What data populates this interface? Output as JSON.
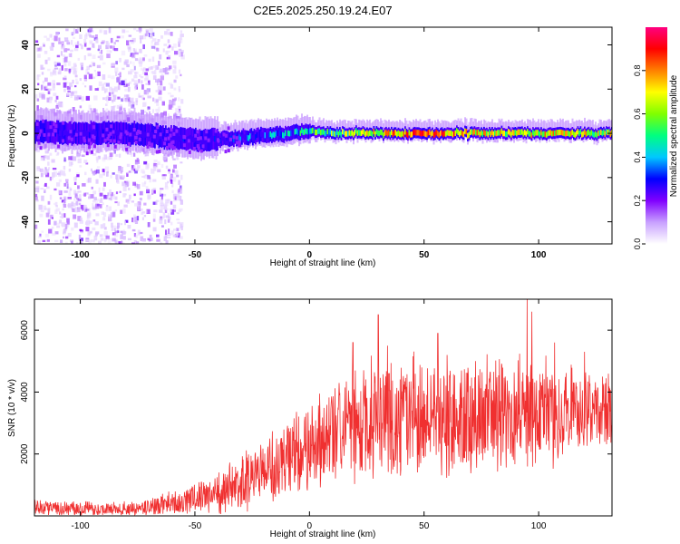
{
  "title": "C2E5.2025.250.19.24.E07",
  "colors": {
    "snr_line": "#f03030",
    "axis": "#000000",
    "background": "#ffffff"
  },
  "chart_data": [
    {
      "type": "heatmap",
      "title": "C2E5.2025.250.19.24.E07",
      "xlabel": "Height of straight line (km)",
      "ylabel": "Frequency (Hz)",
      "xlim": [
        -120,
        132
      ],
      "ylim": [
        -50,
        48
      ],
      "xticks": [
        -100,
        -50,
        0,
        50,
        100
      ],
      "yticks": [
        -40,
        -20,
        0,
        20,
        40
      ],
      "grid": false,
      "colorbar": {
        "label": "Normalized spectral amplitude",
        "range": [
          0.0,
          1.0
        ],
        "ticks": [
          0.0,
          0.2,
          0.4,
          0.6,
          0.8
        ],
        "colormap": [
          "#ffffff",
          "#c8a0ff",
          "#8000ff",
          "#0000ff",
          "#00c8ff",
          "#00ff80",
          "#80ff00",
          "#ffff00",
          "#ff8000",
          "#ff0000",
          "#ff0080"
        ]
      },
      "ridge": [
        {
          "x": -120,
          "y": 1
        },
        {
          "x": -100,
          "y": 0
        },
        {
          "x": -80,
          "y": 0
        },
        {
          "x": -60,
          "y": -2
        },
        {
          "x": -45,
          "y": -3
        },
        {
          "x": -30,
          "y": -2
        },
        {
          "x": -20,
          "y": -1
        },
        {
          "x": -10,
          "y": 0
        },
        {
          "x": 0,
          "y": 1
        },
        {
          "x": 10,
          "y": 0
        },
        {
          "x": 20,
          "y": 0
        },
        {
          "x": 40,
          "y": 0
        },
        {
          "x": 60,
          "y": 0
        },
        {
          "x": 80,
          "y": 0
        },
        {
          "x": 100,
          "y": 0
        },
        {
          "x": 120,
          "y": 0
        },
        {
          "x": 132,
          "y": 0
        }
      ],
      "ridge_amplitude": [
        {
          "x": -120,
          "a": 0.3
        },
        {
          "x": -60,
          "a": 0.3
        },
        {
          "x": -40,
          "a": 0.4
        },
        {
          "x": -20,
          "a": 0.5
        },
        {
          "x": 0,
          "a": 0.6
        },
        {
          "x": 20,
          "a": 0.8
        },
        {
          "x": 40,
          "a": 0.95
        },
        {
          "x": 60,
          "a": 0.95
        },
        {
          "x": 80,
          "a": 0.8
        },
        {
          "x": 100,
          "a": 0.85
        },
        {
          "x": 132,
          "a": 0.8
        }
      ],
      "scatter_region": {
        "xmin": -120,
        "xmax": -56,
        "ymin": -50,
        "ymax": 48,
        "amplitude_max": 0.2
      }
    },
    {
      "type": "line",
      "xlabel": "Height of straight line (km)",
      "ylabel": "SNR (10 * v/v)",
      "xlim": [
        -120,
        132
      ],
      "ylim": [
        0,
        7000
      ],
      "xticks": [
        -100,
        -50,
        0,
        50,
        100
      ],
      "yticks": [
        2000,
        4000,
        6000
      ],
      "grid": false,
      "series": [
        {
          "name": "SNR",
          "envelope": [
            {
              "x": -120,
              "mean": 250,
              "spread": 350
            },
            {
              "x": -75,
              "mean": 200,
              "spread": 300
            },
            {
              "x": -55,
              "mean": 400,
              "spread": 600
            },
            {
              "x": -40,
              "mean": 700,
              "spread": 900
            },
            {
              "x": -28,
              "mean": 1100,
              "spread": 1400
            },
            {
              "x": -15,
              "mean": 1600,
              "spread": 1600
            },
            {
              "x": 0,
              "mean": 2200,
              "spread": 2000
            },
            {
              "x": 10,
              "mean": 2600,
              "spread": 2300
            },
            {
              "x": 20,
              "mean": 2800,
              "spread": 2600
            },
            {
              "x": 40,
              "mean": 3000,
              "spread": 2600
            },
            {
              "x": 60,
              "mean": 3100,
              "spread": 2500
            },
            {
              "x": 80,
              "mean": 3000,
              "spread": 2500
            },
            {
              "x": 100,
              "mean": 3100,
              "spread": 2300
            },
            {
              "x": 132,
              "mean": 3200,
              "spread": 1600
            }
          ],
          "peaks": [
            {
              "x": 19,
              "y": 5600
            },
            {
              "x": 30,
              "y": 6500
            },
            {
              "x": 34,
              "y": 5500
            },
            {
              "x": 56,
              "y": 5900
            },
            {
              "x": 60,
              "y": 5200
            },
            {
              "x": 95,
              "y": 7000
            },
            {
              "x": 97,
              "y": 6600
            },
            {
              "x": 107,
              "y": 5600
            },
            {
              "x": 120,
              "y": 5300
            }
          ]
        }
      ]
    }
  ]
}
